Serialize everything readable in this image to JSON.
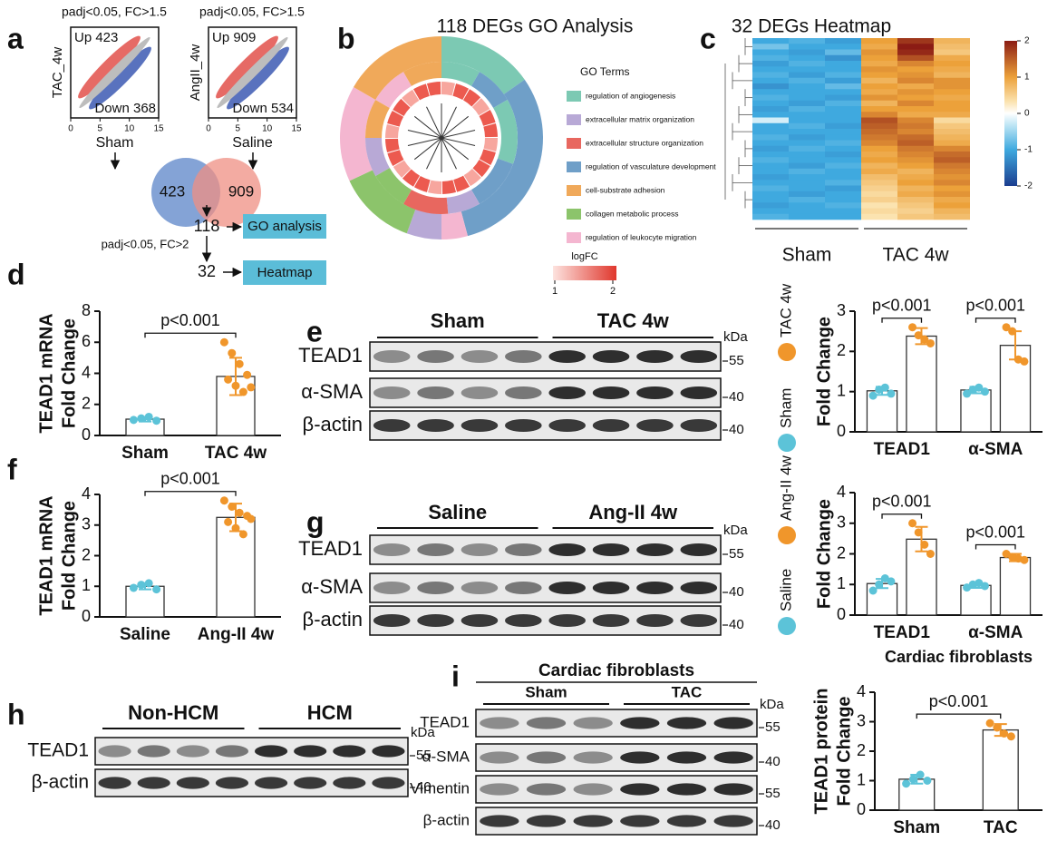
{
  "panels": {
    "a": {
      "letter": "a",
      "scatters": [
        {
          "title": "padj<0.05, FC>1.5",
          "ylabel": "TAC_4w",
          "xlabel": "Sham",
          "up": "Up 423",
          "down": "Down 368"
        },
        {
          "title": "padj<0.05, FC>1.5",
          "ylabel": "AngII_4w",
          "xlabel": "Saline",
          "up": "Up 909",
          "down": "Down 534"
        }
      ],
      "lim": [
        0,
        15
      ],
      "ticks": [
        0,
        5,
        10,
        15
      ],
      "venn": [
        423,
        909
      ],
      "go_count": 118,
      "go_label": "GO analysis",
      "filter": "padj<0.05, FC>2",
      "heat_count": 32,
      "heat_label": "Heatmap"
    },
    "b": {
      "letter": "b",
      "title": "118 DEGs GO Analysis",
      "legend_title": "GO Terms",
      "terms": [
        {
          "label": "regulation of angiogenesis",
          "color": "#7cc9b3"
        },
        {
          "label": "extracellular matrix organization",
          "color": "#b8a9d6"
        },
        {
          "label": "extracellular structure organization",
          "color": "#e8675f"
        },
        {
          "label": "regulation of vasculature development",
          "color": "#6f9fc8"
        },
        {
          "label": "cell-substrate adhesion",
          "color": "#f0a95a"
        },
        {
          "label": "collagen metabolic process",
          "color": "#8cc46b"
        },
        {
          "label": "regulation of leukocyte migration",
          "color": "#f4b6d0"
        }
      ],
      "logfc_title": "logFC",
      "logfc_lim": [
        1,
        2
      ],
      "logfc_ticks": [
        1,
        2
      ]
    },
    "c": {
      "letter": "c",
      "title": "32 DEGs Heatmap",
      "groups": [
        "Sham",
        "TAC 4w"
      ],
      "scale_lim": [
        -2,
        2
      ],
      "scale_ticks": [
        2,
        1,
        0,
        -1,
        -2
      ],
      "matrix": [
        [
          -1.0,
          -0.9,
          -1.1,
          1.0,
          1.8,
          0.8
        ],
        [
          -0.7,
          -1.0,
          -1.0,
          0.9,
          2.0,
          0.7
        ],
        [
          -1.0,
          -1.1,
          -0.8,
          1.1,
          1.9,
          0.6
        ],
        [
          -0.9,
          -1.0,
          -1.2,
          1.0,
          1.6,
          0.9
        ],
        [
          -1.1,
          -0.9,
          -1.0,
          0.9,
          1.2,
          1.0
        ],
        [
          -1.0,
          -1.0,
          -1.0,
          1.1,
          1.0,
          0.9
        ],
        [
          -0.9,
          -1.1,
          -0.9,
          1.0,
          1.1,
          0.8
        ],
        [
          -1.0,
          -0.9,
          -1.1,
          0.8,
          1.2,
          1.1
        ],
        [
          -1.2,
          -1.0,
          -0.8,
          1.0,
          0.9,
          1.1
        ],
        [
          -1.0,
          -1.0,
          -1.0,
          0.9,
          1.1,
          1.0
        ],
        [
          -0.9,
          -1.0,
          -1.1,
          1.1,
          1.0,
          0.9
        ],
        [
          -1.0,
          -1.1,
          -0.9,
          0.8,
          1.2,
          1.0
        ],
        [
          -1.1,
          -0.9,
          -1.0,
          1.0,
          1.0,
          1.0
        ],
        [
          -1.0,
          -1.0,
          -1.0,
          1.2,
          0.9,
          0.9
        ],
        [
          -0.2,
          -1.0,
          -1.0,
          1.6,
          1.2,
          0.4
        ],
        [
          -1.0,
          -0.9,
          -1.1,
          1.5,
          1.3,
          0.6
        ],
        [
          -1.0,
          -1.0,
          -1.0,
          1.4,
          1.2,
          0.7
        ],
        [
          -0.9,
          -1.1,
          -1.0,
          1.3,
          1.4,
          0.8
        ],
        [
          -1.0,
          -1.0,
          -0.9,
          1.2,
          1.5,
          0.9
        ],
        [
          -1.1,
          -0.9,
          -1.0,
          1.0,
          1.3,
          1.2
        ],
        [
          -1.0,
          -1.0,
          -1.1,
          0.9,
          1.2,
          1.4
        ],
        [
          -0.9,
          -1.0,
          -1.0,
          1.0,
          1.1,
          1.5
        ],
        [
          -1.0,
          -1.1,
          -0.9,
          0.8,
          1.0,
          1.3
        ],
        [
          -1.0,
          -0.9,
          -1.0,
          0.9,
          0.8,
          1.2
        ],
        [
          -1.1,
          -1.0,
          -1.0,
          0.7,
          0.9,
          1.1
        ],
        [
          -1.0,
          -1.0,
          -0.9,
          0.6,
          1.0,
          1.2
        ],
        [
          -0.9,
          -1.0,
          -1.1,
          0.5,
          0.8,
          1.0
        ],
        [
          -1.0,
          -1.1,
          -1.0,
          0.4,
          0.9,
          1.1
        ],
        [
          -1.0,
          -0.9,
          -1.0,
          0.5,
          0.7,
          0.9
        ],
        [
          -1.1,
          -1.0,
          -0.9,
          0.3,
          0.6,
          1.0
        ],
        [
          -1.0,
          -1.0,
          -1.0,
          0.4,
          0.5,
          0.8
        ],
        [
          -0.9,
          -1.0,
          -1.0,
          0.3,
          0.6,
          0.7
        ]
      ]
    },
    "d": {
      "letter": "d"
    },
    "e": {
      "letter": "e",
      "groups": [
        "Sham",
        "TAC 4w"
      ],
      "rows": [
        "TEAD1",
        "α-SMA",
        "β-actin"
      ],
      "unit": "kDa",
      "markers": [
        55,
        40,
        40
      ]
    },
    "f": {
      "letter": "f"
    },
    "g": {
      "letter": "g",
      "groups": [
        "Saline",
        "Ang-II 4w"
      ],
      "rows": [
        "TEAD1",
        "α-SMA",
        "β-actin"
      ],
      "unit": "kDa",
      "markers": [
        55,
        40,
        40
      ]
    },
    "h": {
      "letter": "h",
      "groups": [
        "Non-HCM",
        "HCM"
      ],
      "rows": [
        "TEAD1",
        "β-actin"
      ],
      "unit": "kDa",
      "markers": [
        55,
        40
      ]
    },
    "i": {
      "letter": "i",
      "header": "Cardiac fibroblasts",
      "groups": [
        "Sham",
        "TAC"
      ],
      "rows": [
        "TEAD1",
        "α-SMA",
        "Vimentin",
        "β-actin"
      ],
      "unit": "kDa",
      "markers": [
        55,
        40,
        55,
        40
      ]
    }
  },
  "chart_data": [
    {
      "type": "bar",
      "ylabel": [
        "TEAD1 mRNA",
        "Fold Change"
      ],
      "categories": [
        "Sham",
        "TAC 4w"
      ],
      "values": [
        1.05,
        3.8
      ],
      "errors": [
        0.15,
        1.2
      ],
      "colors": [
        "#5cc3d8",
        "#f0962b"
      ],
      "points": [
        [
          1.0,
          1.1,
          1.2,
          0.95
        ],
        [
          6.0,
          5.3,
          4.6,
          3.9,
          3.6,
          3.2,
          2.8,
          3.1
        ]
      ],
      "ylim": [
        0,
        8
      ],
      "yticks": [
        0,
        2,
        4,
        6,
        8
      ],
      "annotations": [
        "p<0.001"
      ]
    },
    {
      "type": "bar",
      "ylabel": [
        "Fold Change"
      ],
      "categories": [
        "TEAD1",
        "α-SMA"
      ],
      "legend": "left",
      "series": [
        {
          "name": "Sham",
          "color": "#5cc3d8",
          "values": [
            1.02,
            1.04
          ],
          "errors": [
            0.1,
            0.08
          ],
          "points": [
            [
              0.9,
              1.05,
              1.1,
              0.95
            ],
            [
              0.95,
              1.05,
              1.1,
              1.0
            ]
          ]
        },
        {
          "name": "TAC 4w",
          "color": "#f0962b",
          "values": [
            2.38,
            2.15
          ],
          "errors": [
            0.2,
            0.35
          ],
          "points": [
            [
              2.6,
              2.4,
              2.3,
              2.2
            ],
            [
              2.6,
              2.5,
              1.8,
              1.75
            ]
          ]
        }
      ],
      "ylim": [
        0,
        3
      ],
      "yticks": [
        0,
        1,
        2,
        3
      ],
      "annotations": [
        "p<0.001",
        "p<0.001"
      ]
    },
    {
      "type": "bar",
      "ylabel": [
        "TEAD1 mRNA",
        "Fold Change"
      ],
      "categories": [
        "Saline",
        "Ang-II 4w"
      ],
      "values": [
        1.0,
        3.25
      ],
      "errors": [
        0.1,
        0.45
      ],
      "colors": [
        "#5cc3d8",
        "#f0962b"
      ],
      "points": [
        [
          0.95,
          1.05,
          1.1,
          0.9
        ],
        [
          3.8,
          3.6,
          3.4,
          3.3,
          3.1,
          2.9,
          2.7,
          3.2
        ]
      ],
      "ylim": [
        0,
        4
      ],
      "yticks": [
        0,
        1,
        2,
        3,
        4
      ],
      "annotations": [
        "p<0.001"
      ]
    },
    {
      "type": "bar",
      "ylabel": [
        "Fold Change"
      ],
      "categories": [
        "TEAD1",
        "α-SMA"
      ],
      "legend": "left",
      "series": [
        {
          "name": "Saline",
          "color": "#5cc3d8",
          "values": [
            1.03,
            0.97
          ],
          "errors": [
            0.15,
            0.08
          ],
          "points": [
            [
              0.8,
              1.0,
              1.2,
              1.1
            ],
            [
              0.9,
              1.0,
              1.05,
              0.95
            ]
          ]
        },
        {
          "name": "Ang-II 4w",
          "color": "#f0962b",
          "values": [
            2.48,
            1.88
          ],
          "errors": [
            0.4,
            0.12
          ],
          "points": [
            [
              3.0,
              2.7,
              2.3,
              2.0
            ],
            [
              2.0,
              1.9,
              1.85,
              1.8
            ]
          ]
        }
      ],
      "ylim": [
        0,
        4
      ],
      "yticks": [
        0,
        1,
        2,
        3,
        4
      ],
      "annotations": [
        "p<0.001",
        "p<0.001"
      ]
    },
    {
      "type": "bar",
      "title": "Cardiac fibroblasts",
      "ylabel": [
        "TEAD1 protein",
        "Fold Change"
      ],
      "categories": [
        "Sham",
        "TAC"
      ],
      "values": [
        1.05,
        2.72
      ],
      "errors": [
        0.15,
        0.2
      ],
      "colors": [
        "#5cc3d8",
        "#f0962b"
      ],
      "points": [
        [
          0.9,
          1.05,
          1.2,
          1.0
        ],
        [
          2.95,
          2.8,
          2.6,
          2.5
        ]
      ],
      "ylim": [
        0,
        4
      ],
      "yticks": [
        0,
        1,
        2,
        3,
        4
      ],
      "annotations": [
        "p<0.001"
      ]
    }
  ]
}
